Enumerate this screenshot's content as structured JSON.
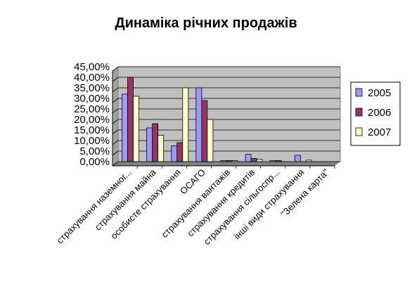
{
  "chart_data": {
    "type": "bar",
    "title": "Динаміка річних продажів",
    "categories": [
      "страхування наземног...",
      "страхування майна",
      "особисте страхування",
      "ОСАГО",
      "страхування вантажів",
      "страхування кредитів",
      "страхування сільгоспр...",
      "інші види страхування",
      "\"Зелена карта\""
    ],
    "series": [
      {
        "name": "2005",
        "color": "#9999ff",
        "values": [
          32,
          16,
          7.5,
          35,
          0.5,
          3.5,
          0.5,
          3,
          0
        ]
      },
      {
        "name": "2006",
        "color": "#993366",
        "values": [
          40,
          18,
          9,
          29,
          0.5,
          1.5,
          0.5,
          0,
          0
        ]
      },
      {
        "name": "2007",
        "color": "#ffffcc",
        "values": [
          31,
          12.5,
          35,
          20,
          0.5,
          1,
          0,
          0.7,
          0
        ]
      }
    ],
    "ylim": [
      0,
      45
    ],
    "yticks": [
      "0,00%",
      "5,00%",
      "10,00%",
      "15,00%",
      "20,00%",
      "25,00%",
      "30,00%",
      "35,00%",
      "40,00%",
      "45,00%"
    ],
    "plot_background": "#c0c0c0",
    "grid": true,
    "legend_position": "right"
  }
}
